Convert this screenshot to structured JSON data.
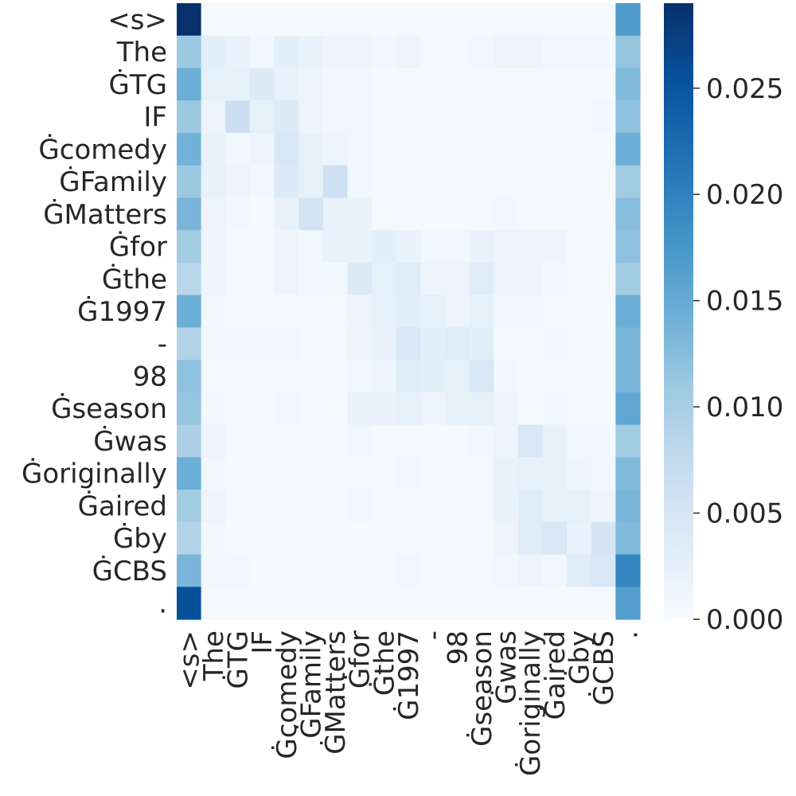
{
  "chart_data": {
    "type": "heatmap",
    "colormap": "Blues",
    "vmin": 0,
    "vmax": 0.029,
    "colorbar_ticks": [
      "0.000",
      "0.005",
      "0.010",
      "0.015",
      "0.020",
      "0.025"
    ],
    "colorbar_tick_values": [
      0,
      0.005,
      0.01,
      0.015,
      0.02,
      0.025
    ],
    "row_labels": [
      "<s>",
      "The",
      "ĠTG",
      "IF",
      "Ġcomedy",
      "ĠFamily",
      "ĠMatters",
      "Ġfor",
      "Ġthe",
      "Ġ1997",
      "-",
      "98",
      "Ġseason",
      "Ġwas",
      "Ġoriginally",
      "Ġaired",
      "Ġby",
      "ĠCBS",
      "."
    ],
    "col_labels": [
      "<s>",
      "The",
      "ĠTG",
      "IF",
      "Ġcomedy",
      "ĠFamily",
      "ĠMatters",
      "Ġfor",
      "Ġthe",
      "Ġ1997",
      "-",
      "98",
      "Ġseason",
      "Ġwas",
      "Ġoriginally",
      "Ġaired",
      "Ġby",
      "ĠCBS",
      "."
    ],
    "values": [
      [
        0.029,
        0.0005,
        0.0005,
        0.0005,
        0.0005,
        0.0005,
        0.0005,
        0.0005,
        0.0005,
        0.0005,
        0.0005,
        0.0005,
        0.0005,
        0.0005,
        0.0005,
        0.0005,
        0.0005,
        0.0005,
        0.017
      ],
      [
        0.011,
        0.003,
        0.002,
        0.001,
        0.003,
        0.002,
        0.0015,
        0.0015,
        0.001,
        0.0015,
        0.0005,
        0.0005,
        0.001,
        0.0015,
        0.0015,
        0.001,
        0.001,
        0.001,
        0.0115
      ],
      [
        0.0145,
        0.0025,
        0.0025,
        0.004,
        0.002,
        0.0015,
        0.001,
        0.001,
        0.0005,
        0.0005,
        0.0005,
        0.0005,
        0.0005,
        0.0005,
        0.0005,
        0.0005,
        0.0005,
        0.0005,
        0.013
      ],
      [
        0.011,
        0.0015,
        0.0065,
        0.0025,
        0.004,
        0.0015,
        0.001,
        0.001,
        0.0005,
        0.0005,
        0.0005,
        0.0005,
        0.0005,
        0.0005,
        0.0005,
        0.0005,
        0.0005,
        0.001,
        0.012
      ],
      [
        0.014,
        0.002,
        0.001,
        0.0015,
        0.0045,
        0.0025,
        0.0015,
        0.001,
        0.0005,
        0.0005,
        0.0005,
        0.0005,
        0.0005,
        0.0005,
        0.0005,
        0.0005,
        0.0005,
        0.0005,
        0.0145
      ],
      [
        0.011,
        0.002,
        0.0015,
        0.001,
        0.004,
        0.0025,
        0.006,
        0.001,
        0.0005,
        0.0005,
        0.0005,
        0.0005,
        0.0005,
        0.0005,
        0.0005,
        0.0005,
        0.0005,
        0.0005,
        0.0105
      ],
      [
        0.0135,
        0.0015,
        0.001,
        0.0005,
        0.002,
        0.0055,
        0.002,
        0.002,
        0.0005,
        0.0005,
        0.0005,
        0.0005,
        0.0005,
        0.001,
        0.0005,
        0.0005,
        0.0005,
        0.0005,
        0.0125
      ],
      [
        0.0105,
        0.0015,
        0.0005,
        0.0005,
        0.0015,
        0.001,
        0.002,
        0.002,
        0.003,
        0.002,
        0.001,
        0.001,
        0.002,
        0.0015,
        0.0015,
        0.0015,
        0.0005,
        0.0005,
        0.012
      ],
      [
        0.0085,
        0.0015,
        0.0005,
        0.0005,
        0.0015,
        0.001,
        0.001,
        0.004,
        0.0025,
        0.0035,
        0.0015,
        0.0015,
        0.0035,
        0.0015,
        0.0015,
        0.001,
        0.0005,
        0.0005,
        0.0105
      ],
      [
        0.0145,
        0.001,
        0.0005,
        0.0005,
        0.0005,
        0.0005,
        0.0005,
        0.0015,
        0.0025,
        0.003,
        0.0025,
        0.0015,
        0.0025,
        0.001,
        0.001,
        0.0005,
        0.0005,
        0.0005,
        0.0145
      ],
      [
        0.009,
        0.001,
        0.001,
        0.001,
        0.001,
        0.0005,
        0.0005,
        0.0015,
        0.002,
        0.0045,
        0.003,
        0.0035,
        0.003,
        0.0005,
        0.0005,
        0.001,
        0.0005,
        0.0005,
        0.0135
      ],
      [
        0.012,
        0.0005,
        0.0005,
        0.0005,
        0.0005,
        0.0005,
        0.0005,
        0.001,
        0.0015,
        0.0035,
        0.003,
        0.0025,
        0.0045,
        0.001,
        0.0005,
        0.0005,
        0.0005,
        0.0005,
        0.0135
      ],
      [
        0.0115,
        0.001,
        0.0005,
        0.0005,
        0.001,
        0.0005,
        0.0005,
        0.002,
        0.002,
        0.0025,
        0.0015,
        0.0025,
        0.0025,
        0.0015,
        0.0005,
        0.001,
        0.0005,
        0.0005,
        0.0155
      ],
      [
        0.0095,
        0.0015,
        0.0005,
        0.0005,
        0.0005,
        0.0005,
        0.0005,
        0.001,
        0.0005,
        0.0005,
        0.0005,
        0.0005,
        0.001,
        0.0015,
        0.0045,
        0.002,
        0.001,
        0.001,
        0.0105
      ],
      [
        0.0145,
        0.001,
        0.0005,
        0.0005,
        0.0005,
        0.0005,
        0.0005,
        0.0005,
        0.0005,
        0.001,
        0.0005,
        0.0005,
        0.0005,
        0.002,
        0.0025,
        0.0025,
        0.0015,
        0.001,
        0.013
      ],
      [
        0.0105,
        0.0015,
        0.0005,
        0.0005,
        0.0005,
        0.0005,
        0.0005,
        0.001,
        0.0005,
        0.0005,
        0.0005,
        0.0005,
        0.0005,
        0.002,
        0.0035,
        0.0025,
        0.0025,
        0.0015,
        0.0135
      ],
      [
        0.009,
        0.001,
        0.0005,
        0.0005,
        0.0005,
        0.0005,
        0.0005,
        0.0005,
        0.0005,
        0.0005,
        0.0005,
        0.0005,
        0.0005,
        0.0015,
        0.0035,
        0.0045,
        0.002,
        0.005,
        0.013
      ],
      [
        0.0135,
        0.001,
        0.001,
        0.0005,
        0.0005,
        0.0005,
        0.0005,
        0.0005,
        0.0005,
        0.001,
        0.0005,
        0.0005,
        0.0005,
        0.001,
        0.0015,
        0.001,
        0.0035,
        0.0045,
        0.0195
      ],
      [
        0.0255,
        0.0005,
        0.0005,
        0.0005,
        0.0005,
        0.0005,
        0.0005,
        0.0005,
        0.0005,
        0.0005,
        0.0005,
        0.0005,
        0.0005,
        0.0005,
        0.0005,
        0.0005,
        0.0005,
        0.0005,
        0.0165
      ]
    ]
  }
}
